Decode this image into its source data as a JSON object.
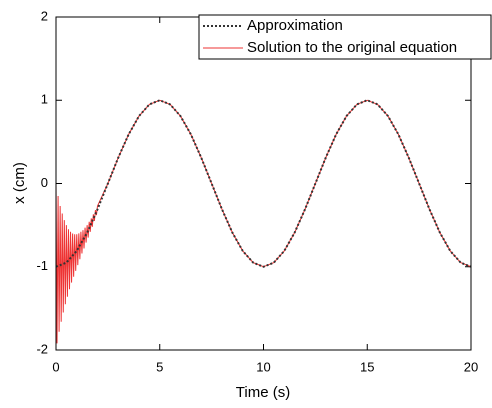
{
  "chart_data": {
    "type": "line",
    "x_label": "Time (s)",
    "y_label": "x (cm)",
    "xlim": [
      0,
      20
    ],
    "xticks": [
      0,
      5,
      10,
      15,
      20
    ],
    "ylim": [
      -2,
      2
    ],
    "yticks": [
      -2,
      -1,
      0,
      1,
      2
    ],
    "legend": "upper right",
    "series": [
      {
        "name": "Approximation",
        "color": "#333333",
        "style": "dotted",
        "x": [
          0,
          0.5,
          1,
          1.5,
          2,
          2.5,
          3,
          3.5,
          4,
          4.5,
          5,
          5.5,
          6,
          6.5,
          7,
          7.5,
          8,
          8.5,
          9,
          9.5,
          10,
          10.5,
          11,
          11.5,
          12,
          12.5,
          13,
          13.5,
          14,
          14.5,
          15,
          15.5,
          16,
          16.5,
          17,
          17.5,
          18,
          18.5,
          19,
          19.5,
          20
        ],
        "values": [
          -1,
          -0.95,
          -0.81,
          -0.59,
          -0.31,
          0,
          0.31,
          0.59,
          0.81,
          0.95,
          1,
          0.95,
          0.81,
          0.59,
          0.31,
          0,
          -0.31,
          -0.59,
          -0.81,
          -0.95,
          -1,
          -0.95,
          -0.81,
          -0.59,
          -0.31,
          0,
          0.31,
          0.59,
          0.81,
          0.95,
          1,
          0.95,
          0.81,
          0.59,
          0.31,
          0,
          -0.31,
          -0.59,
          -0.81,
          -0.95,
          -1
        ]
      },
      {
        "name": "Solution to the original equation",
        "color": "#ee3333",
        "style": "solid",
        "x": [
          0,
          0.05,
          0.1,
          0.15,
          0.2,
          0.25,
          0.3,
          0.35,
          0.4,
          0.45,
          0.5,
          0.55,
          0.6,
          0.65,
          0.7,
          0.75,
          0.8,
          0.85,
          0.9,
          0.95,
          1,
          1.05,
          1.1,
          1.15,
          1.2,
          1.25,
          1.3,
          1.35,
          1.4,
          1.45,
          1.5,
          1.55,
          1.6,
          1.65,
          1.7,
          1.75,
          1.8,
          1.85,
          1.9,
          1.95,
          2,
          2.5,
          3,
          3.5,
          4,
          4.5,
          5,
          5.5,
          6,
          6.5,
          7,
          7.5,
          8,
          8.5,
          9,
          9.5,
          10,
          10.5,
          11,
          11.5,
          12,
          12.5,
          13,
          13.5,
          14,
          14.5,
          15,
          15.5,
          16,
          16.5,
          17,
          17.5,
          18,
          18.5,
          19,
          19.5,
          20
        ],
        "values": [
          0,
          -1.92,
          -0.15,
          -1.78,
          -0.27,
          -1.66,
          -0.36,
          -1.55,
          -0.44,
          -1.45,
          -0.5,
          -1.36,
          -0.55,
          -1.27,
          -0.58,
          -1.19,
          -0.6,
          -1.12,
          -0.61,
          -1.05,
          -0.61,
          -0.98,
          -0.6,
          -0.91,
          -0.58,
          -0.84,
          -0.56,
          -0.78,
          -0.53,
          -0.71,
          -0.5,
          -0.65,
          -0.46,
          -0.58,
          -0.42,
          -0.52,
          -0.37,
          -0.45,
          -0.32,
          -0.38,
          -0.27,
          0,
          0.31,
          0.59,
          0.81,
          0.95,
          1,
          0.95,
          0.81,
          0.59,
          0.31,
          0,
          -0.31,
          -0.59,
          -0.81,
          -0.95,
          -1,
          -0.95,
          -0.81,
          -0.59,
          -0.31,
          0,
          0.31,
          0.59,
          0.81,
          0.95,
          1,
          0.95,
          0.81,
          0.59,
          0.31,
          0,
          -0.31,
          -0.59,
          -0.81,
          -0.95,
          -1
        ]
      }
    ]
  }
}
